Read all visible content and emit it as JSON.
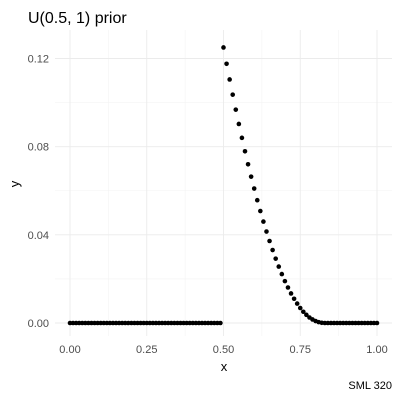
{
  "chart_data": {
    "type": "scatter",
    "title": "U(0.5, 1) prior",
    "xlabel": "x",
    "ylabel": "y",
    "caption": "SML 320",
    "xlim": [
      0,
      1
    ],
    "ylim": [
      0,
      0.125
    ],
    "x_ticks": [
      0.0,
      0.25,
      0.5,
      0.75,
      1.0
    ],
    "x_tick_labels": [
      "0.00",
      "0.25",
      "0.50",
      "0.75",
      "1.00"
    ],
    "y_ticks": [
      0.0,
      0.04,
      0.08,
      0.12
    ],
    "y_tick_labels": [
      "0.00",
      "0.04",
      "0.08",
      "0.12"
    ],
    "grid": true,
    "point_color": "#000000",
    "series": [
      {
        "x": [
          0.0,
          0.01,
          0.02,
          0.03,
          0.04,
          0.05,
          0.06,
          0.07,
          0.08,
          0.09,
          0.1,
          0.11,
          0.12,
          0.13,
          0.14,
          0.15,
          0.16,
          0.17,
          0.18,
          0.19,
          0.2,
          0.21,
          0.22,
          0.23,
          0.24,
          0.25,
          0.26,
          0.27,
          0.28,
          0.29,
          0.3,
          0.31,
          0.32,
          0.33,
          0.34,
          0.35,
          0.36,
          0.37,
          0.38,
          0.39,
          0.4,
          0.41,
          0.42,
          0.43,
          0.44,
          0.45,
          0.46,
          0.47,
          0.48,
          0.49,
          0.5,
          0.51,
          0.52,
          0.53,
          0.54,
          0.55,
          0.56,
          0.57,
          0.58,
          0.59,
          0.6,
          0.61,
          0.62,
          0.63,
          0.64,
          0.65,
          0.66,
          0.67,
          0.68,
          0.69,
          0.7,
          0.71,
          0.72,
          0.73,
          0.74,
          0.75,
          0.76,
          0.77,
          0.78,
          0.79,
          0.8,
          0.81,
          0.82,
          0.83,
          0.84,
          0.85,
          0.86,
          0.87,
          0.88,
          0.89,
          0.9,
          0.91,
          0.92,
          0.93,
          0.94,
          0.95,
          0.96,
          0.97,
          0.98,
          0.99,
          1.0
        ],
        "y": [
          0,
          0,
          0,
          0,
          0,
          0,
          0,
          0,
          0,
          0,
          0,
          0,
          0,
          0,
          0,
          0,
          0,
          0,
          0,
          0,
          0,
          0,
          0,
          0,
          0,
          0,
          0,
          0,
          0,
          0,
          0,
          0,
          0,
          0,
          0,
          0,
          0,
          0,
          0,
          0,
          0,
          0,
          0,
          0,
          0,
          0,
          0,
          0,
          0,
          0,
          0.125,
          0.1176,
          0.1105,
          0.1036,
          0.0968,
          0.0903,
          0.084,
          0.0779,
          0.072,
          0.0664,
          0.061,
          0.0557,
          0.0508,
          0.046,
          0.0415,
          0.0372,
          0.0331,
          0.0292,
          0.0256,
          0.0222,
          0.019,
          0.0161,
          0.0134,
          0.011,
          0.0088,
          0.0068,
          0.0051,
          0.0037,
          0.0025,
          0.0016,
          0.0009,
          0.0004,
          0.0001,
          0.0,
          0.0,
          0.0,
          0.0,
          0.0,
          0.0,
          0.0,
          0.0,
          0.0,
          0.0,
          0.0,
          0.0,
          0.0,
          0.0,
          0.0,
          0.0,
          0.0,
          0.0
        ]
      }
    ]
  }
}
